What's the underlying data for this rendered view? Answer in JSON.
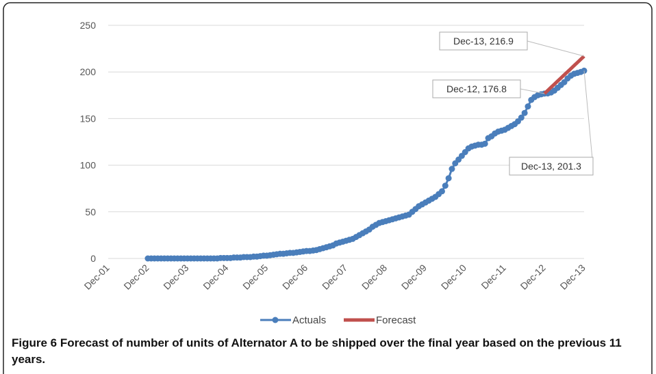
{
  "chart_data": {
    "type": "line",
    "categories": [
      "Dec-01",
      null,
      null,
      null,
      null,
      null,
      null,
      null,
      null,
      null,
      null,
      null,
      "Dec-02",
      null,
      null,
      null,
      null,
      null,
      null,
      null,
      null,
      null,
      null,
      null,
      "Dec-03",
      null,
      null,
      null,
      null,
      null,
      null,
      null,
      null,
      null,
      null,
      null,
      "Dec-04",
      null,
      null,
      null,
      null,
      null,
      null,
      null,
      null,
      null,
      null,
      null,
      "Dec-05",
      null,
      null,
      null,
      null,
      null,
      null,
      null,
      null,
      null,
      null,
      null,
      "Dec-06",
      null,
      null,
      null,
      null,
      null,
      null,
      null,
      null,
      null,
      null,
      null,
      "Dec-07",
      null,
      null,
      null,
      null,
      null,
      null,
      null,
      null,
      null,
      null,
      null,
      "Dec-08",
      null,
      null,
      null,
      null,
      null,
      null,
      null,
      null,
      null,
      null,
      null,
      "Dec-09",
      null,
      null,
      null,
      null,
      null,
      null,
      null,
      null,
      null,
      null,
      null,
      "Dec-10",
      null,
      null,
      null,
      null,
      null,
      null,
      null,
      null,
      null,
      null,
      null,
      "Dec-11",
      null,
      null,
      null,
      null,
      null,
      null,
      null,
      null,
      null,
      null,
      null,
      "Dec-12",
      null,
      null,
      null,
      null,
      null,
      null,
      null,
      null,
      null,
      null,
      null,
      "Dec-13"
    ],
    "series": [
      {
        "name": "Actuals",
        "color": "#4a7ebb",
        "markers": true,
        "values": [
          null,
          null,
          null,
          null,
          null,
          null,
          null,
          null,
          null,
          null,
          null,
          null,
          0,
          0,
          0,
          0,
          0,
          0,
          0,
          0,
          0,
          0,
          0,
          0,
          0,
          0,
          0,
          0,
          0,
          0,
          0,
          0,
          0,
          0,
          0.5,
          0.5,
          0.5,
          0.5,
          1,
          1,
          1,
          1.5,
          1.5,
          1.5,
          2,
          2,
          2.5,
          3,
          3,
          3.5,
          4,
          4.5,
          5,
          5,
          5.5,
          6,
          6,
          6.5,
          7,
          7.5,
          8,
          8,
          8.5,
          9,
          10,
          11,
          12,
          13,
          14,
          16,
          17,
          18,
          19,
          20,
          21,
          23,
          25,
          27,
          29,
          31,
          34,
          36,
          38,
          39,
          40,
          41,
          42,
          43,
          44,
          45,
          46,
          47,
          50,
          53,
          56,
          58,
          60,
          62,
          64,
          66,
          69,
          72,
          78,
          86,
          96,
          102,
          106,
          110,
          114,
          118,
          120,
          121,
          122,
          122,
          123,
          129,
          131,
          134,
          136,
          137,
          138,
          140,
          142,
          144,
          147,
          151,
          156,
          163,
          170,
          173,
          175,
          176,
          176.8,
          177,
          178,
          180,
          183,
          186,
          189,
          193,
          196,
          198,
          199,
          200,
          201.3
        ],
        "value_labels": [
          null,
          null,
          null,
          null,
          null,
          null,
          null,
          null,
          null,
          null,
          null,
          null,
          null,
          null,
          null,
          null,
          null,
          null,
          null,
          null,
          null,
          null,
          null,
          null,
          null,
          null,
          null,
          null,
          null,
          null,
          null,
          null,
          null,
          null,
          null,
          null,
          null,
          null,
          null,
          null,
          null,
          null,
          null,
          null,
          null,
          null,
          null,
          null,
          null,
          null,
          null,
          null,
          null,
          null,
          null,
          null,
          null,
          null,
          null,
          null,
          null,
          null,
          null,
          null,
          null,
          null,
          null,
          null,
          null,
          null,
          null,
          null,
          null,
          null,
          null,
          null,
          null,
          null,
          null,
          null,
          null,
          null,
          null,
          null,
          null,
          null,
          null,
          null,
          null,
          null,
          null,
          null,
          null,
          null,
          null,
          null,
          null,
          null,
          null,
          null,
          null,
          null,
          null,
          null,
          null,
          null,
          null,
          null,
          null,
          null,
          null,
          null,
          null,
          null,
          null,
          null,
          null,
          null,
          null,
          null,
          null,
          null,
          null,
          null,
          null,
          null,
          null,
          null,
          null,
          null,
          null,
          null,
          "Dec-12, 176.8",
          null,
          null,
          null,
          null,
          null,
          null,
          null,
          null,
          null,
          null,
          null,
          "Dec-13, 201.3"
        ]
      },
      {
        "name": "Forecast",
        "color": "#c0504d",
        "markers": false,
        "values": [
          null,
          null,
          null,
          null,
          null,
          null,
          null,
          null,
          null,
          null,
          null,
          null,
          null,
          null,
          null,
          null,
          null,
          null,
          null,
          null,
          null,
          null,
          null,
          null,
          null,
          null,
          null,
          null,
          null,
          null,
          null,
          null,
          null,
          null,
          null,
          null,
          null,
          null,
          null,
          null,
          null,
          null,
          null,
          null,
          null,
          null,
          null,
          null,
          null,
          null,
          null,
          null,
          null,
          null,
          null,
          null,
          null,
          null,
          null,
          null,
          null,
          null,
          null,
          null,
          null,
          null,
          null,
          null,
          null,
          null,
          null,
          null,
          null,
          null,
          null,
          null,
          null,
          null,
          null,
          null,
          null,
          null,
          null,
          null,
          null,
          null,
          null,
          null,
          null,
          null,
          null,
          null,
          null,
          null,
          null,
          null,
          null,
          null,
          null,
          null,
          null,
          null,
          null,
          null,
          null,
          null,
          null,
          null,
          null,
          null,
          null,
          null,
          null,
          null,
          null,
          null,
          null,
          null,
          null,
          null,
          null,
          null,
          null,
          null,
          null,
          null,
          null,
          null,
          null,
          null,
          null,
          null,
          176.8,
          180.1,
          183.5,
          186.8,
          190.2,
          193.5,
          196.9,
          200.2,
          203.5,
          206.9,
          210.2,
          213.6,
          216.9
        ],
        "value_labels": [
          null,
          null,
          null,
          null,
          null,
          null,
          null,
          null,
          null,
          null,
          null,
          null,
          null,
          null,
          null,
          null,
          null,
          null,
          null,
          null,
          null,
          null,
          null,
          null,
          null,
          null,
          null,
          null,
          null,
          null,
          null,
          null,
          null,
          null,
          null,
          null,
          null,
          null,
          null,
          null,
          null,
          null,
          null,
          null,
          null,
          null,
          null,
          null,
          null,
          null,
          null,
          null,
          null,
          null,
          null,
          null,
          null,
          null,
          null,
          null,
          null,
          null,
          null,
          null,
          null,
          null,
          null,
          null,
          null,
          null,
          null,
          null,
          null,
          null,
          null,
          null,
          null,
          null,
          null,
          null,
          null,
          null,
          null,
          null,
          null,
          null,
          null,
          null,
          null,
          null,
          null,
          null,
          null,
          null,
          null,
          null,
          null,
          null,
          null,
          null,
          null,
          null,
          null,
          null,
          null,
          null,
          null,
          null,
          null,
          null,
          null,
          null,
          null,
          null,
          null,
          null,
          null,
          null,
          null,
          null,
          null,
          null,
          null,
          null,
          null,
          null,
          null,
          null,
          null,
          null,
          null,
          null,
          null,
          null,
          null,
          null,
          null,
          null,
          null,
          null,
          null,
          null,
          null,
          null,
          "Dec-13, 216.9"
        ]
      }
    ],
    "ylim": [
      0,
      250
    ],
    "yticks": [
      0,
      50,
      100,
      150,
      200,
      250
    ],
    "grid": true,
    "legend": "bottom",
    "caption": "Figure 6 Forecast of number of units of Alternator A to be shipped over the final year based on the previous 11 years."
  }
}
